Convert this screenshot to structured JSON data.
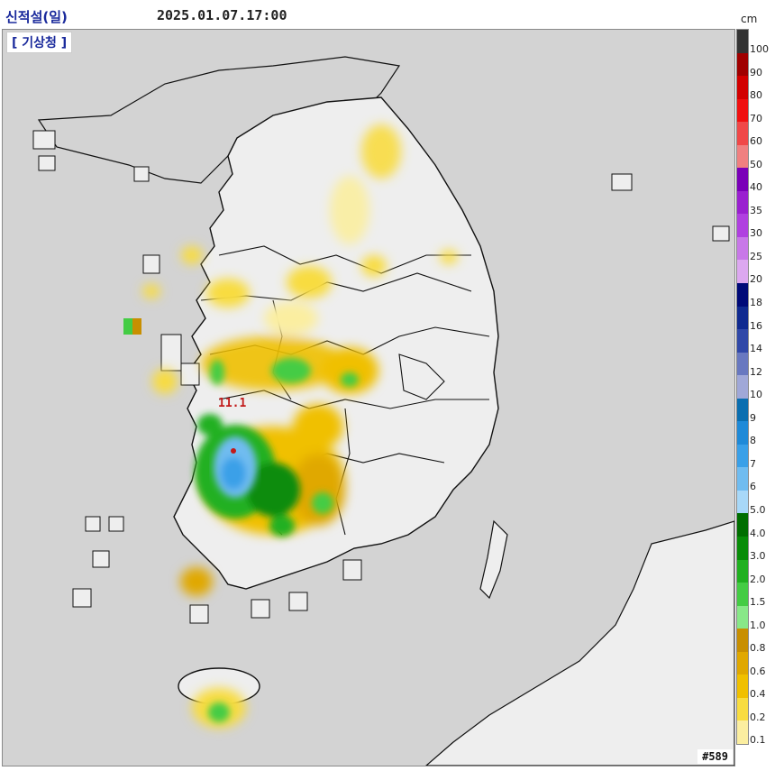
{
  "header": {
    "title": "신적설(일)",
    "datetime": "2025.01.07.17:00"
  },
  "map": {
    "agency_label": "[ 기상청 ]",
    "code_label": "#589",
    "peak_value_label": "11.1"
  },
  "legend": {
    "unit": "cm",
    "levels": [
      {
        "label": "100",
        "color": "#333333"
      },
      {
        "label": "90",
        "color": "#a00000"
      },
      {
        "label": "80",
        "color": "#d20000"
      },
      {
        "label": "70",
        "color": "#f01010"
      },
      {
        "label": "60",
        "color": "#f04848"
      },
      {
        "label": "50",
        "color": "#f08080"
      },
      {
        "label": "40",
        "color": "#7a00b8"
      },
      {
        "label": "35",
        "color": "#9a20d0"
      },
      {
        "label": "30",
        "color": "#b040e0"
      },
      {
        "label": "25",
        "color": "#c878e8"
      },
      {
        "label": "20",
        "color": "#dca8f0"
      },
      {
        "label": "18",
        "color": "#000a78"
      },
      {
        "label": "16",
        "color": "#102a90"
      },
      {
        "label": "14",
        "color": "#3048a8"
      },
      {
        "label": "12",
        "color": "#6878c0"
      },
      {
        "label": "10",
        "color": "#a0a8d8"
      },
      {
        "label": "9",
        "color": "#0a6eb0"
      },
      {
        "label": "8",
        "color": "#1f8ad8"
      },
      {
        "label": "7",
        "color": "#3aa0e8"
      },
      {
        "label": "6",
        "color": "#70bcf0"
      },
      {
        "label": "5.0",
        "color": "#a8d8f8"
      },
      {
        "label": "4.0",
        "color": "#006e00"
      },
      {
        "label": "3.0",
        "color": "#088c08"
      },
      {
        "label": "2.0",
        "color": "#20b020"
      },
      {
        "label": "1.5",
        "color": "#44cc44"
      },
      {
        "label": "1.0",
        "color": "#88e888"
      },
      {
        "label": "0.8",
        "color": "#c88f00"
      },
      {
        "label": "0.6",
        "color": "#e0a800"
      },
      {
        "label": "0.4",
        "color": "#f0c000"
      },
      {
        "label": "0.2",
        "color": "#f8dc40"
      },
      {
        "label": "0.1",
        "color": "#fbeea0"
      }
    ]
  },
  "colors": {
    "sea": "#d3d3d3",
    "land": "#eeeeee",
    "border_line": "#111111",
    "title_text": "#1a2a9c",
    "peak_marker": "#c21a1a"
  }
}
